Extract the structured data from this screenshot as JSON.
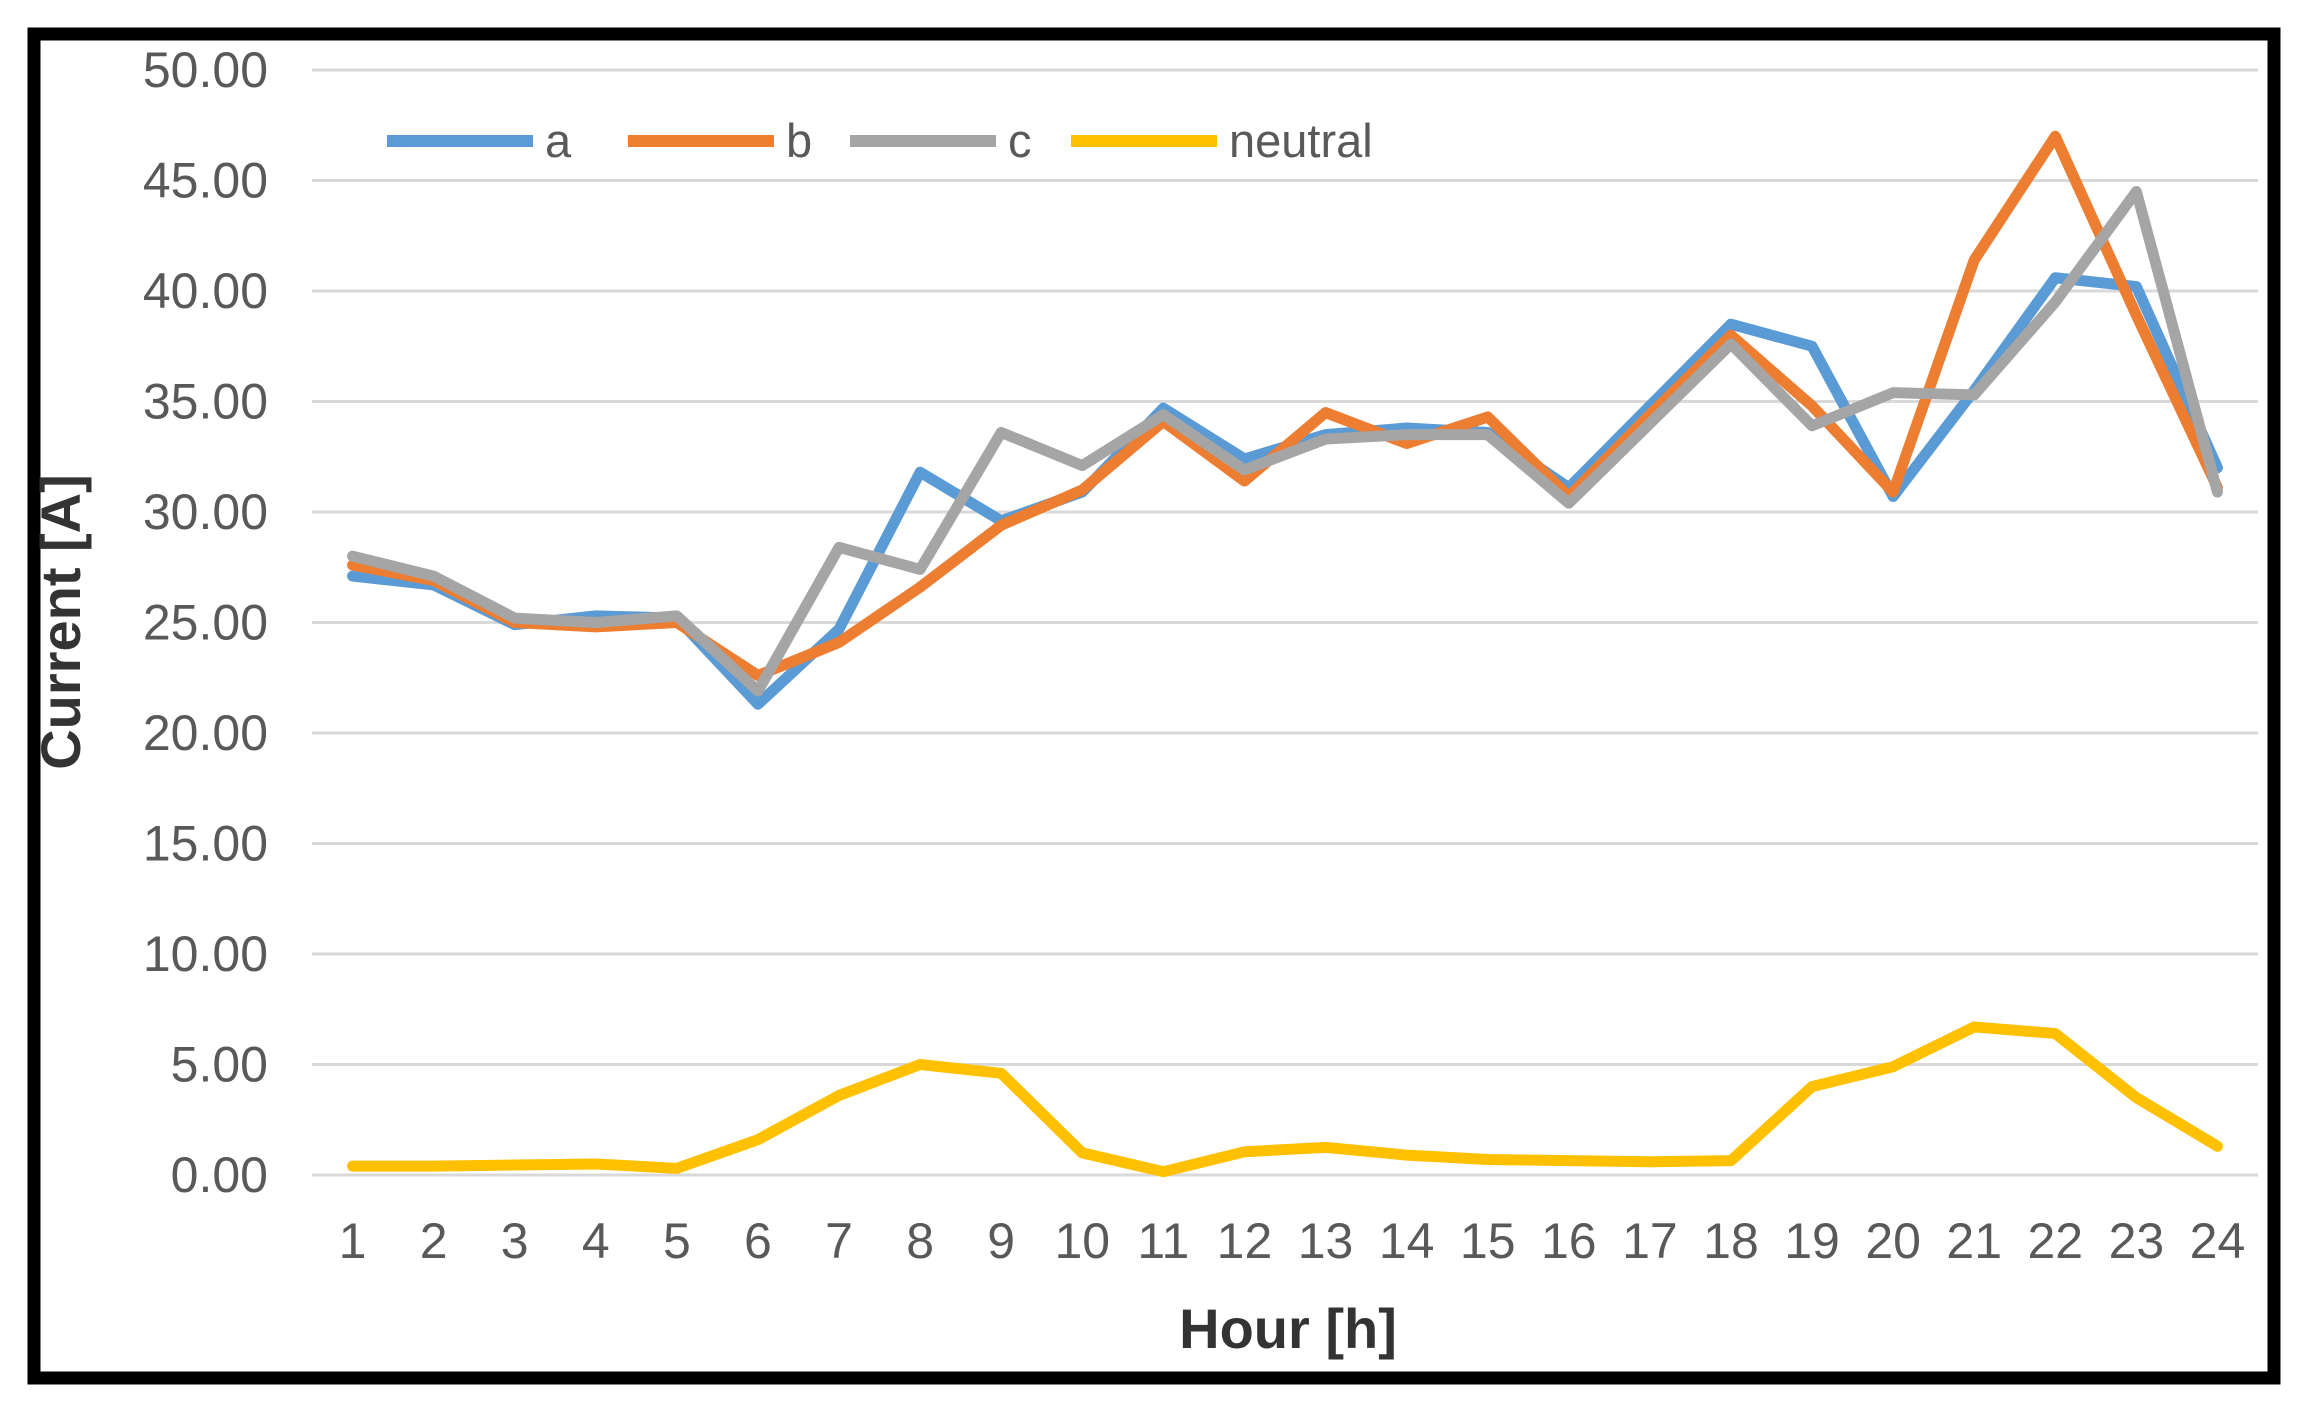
{
  "chart_data": {
    "type": "line",
    "title": "",
    "xlabel": "Hour [h]",
    "ylabel": "Current [A]",
    "x": [
      1,
      2,
      3,
      4,
      5,
      6,
      7,
      8,
      9,
      10,
      11,
      12,
      13,
      14,
      15,
      16,
      17,
      18,
      19,
      20,
      21,
      22,
      23,
      24
    ],
    "series": [
      {
        "name": "a",
        "color": "#5B9BD5",
        "values": [
          27.1,
          26.7,
          24.9,
          25.3,
          25.2,
          21.3,
          24.7,
          31.8,
          29.6,
          30.9,
          34.7,
          32.4,
          33.5,
          33.8,
          33.6,
          31.1,
          34.8,
          38.5,
          37.5,
          30.7,
          35.5,
          40.6,
          40.2,
          32.0
        ]
      },
      {
        "name": "b",
        "color": "#ED7D31",
        "values": [
          27.6,
          26.9,
          25.0,
          24.8,
          25.0,
          22.6,
          24.1,
          26.6,
          29.4,
          31.0,
          34.1,
          31.4,
          34.5,
          33.1,
          34.3,
          30.7,
          34.4,
          38.0,
          34.8,
          30.9,
          41.4,
          47.0,
          38.9,
          31.1
        ]
      },
      {
        "name": "c",
        "color": "#A5A5A5",
        "values": [
          28.0,
          27.1,
          25.2,
          25.0,
          25.3,
          21.9,
          28.4,
          27.4,
          33.6,
          32.1,
          34.4,
          31.9,
          33.3,
          33.5,
          33.5,
          30.4,
          34.0,
          37.6,
          33.9,
          35.4,
          35.3,
          39.5,
          44.5,
          30.9
        ]
      },
      {
        "name": "neutral",
        "color": "#FFC000",
        "values": [
          0.4,
          0.4,
          0.45,
          0.5,
          0.3,
          1.6,
          3.6,
          5.0,
          4.6,
          1.0,
          0.15,
          1.05,
          1.25,
          0.9,
          0.7,
          0.65,
          0.6,
          0.65,
          4.0,
          4.9,
          6.7,
          6.4,
          3.5,
          1.3
        ]
      }
    ],
    "ylim": [
      0,
      50
    ],
    "ytick_step": 5,
    "ytick_labels": [
      "0.00",
      "5.00",
      "10.00",
      "15.00",
      "20.00",
      "25.00",
      "30.00",
      "35.00",
      "40.00",
      "45.00",
      "50.00"
    ],
    "xtick_labels": [
      "1",
      "2",
      "3",
      "4",
      "5",
      "6",
      "7",
      "8",
      "9",
      "10",
      "11",
      "12",
      "13",
      "14",
      "15",
      "16",
      "17",
      "18",
      "19",
      "20",
      "21",
      "22",
      "23",
      "24"
    ],
    "grid": "horizontal",
    "legend_position": "top"
  },
  "style": {
    "grid_color": "#D9D9D9",
    "axis_text_color": "#595959",
    "axis_title_color": "#333333",
    "border_color": "#000000",
    "background": "#FFFFFF"
  }
}
